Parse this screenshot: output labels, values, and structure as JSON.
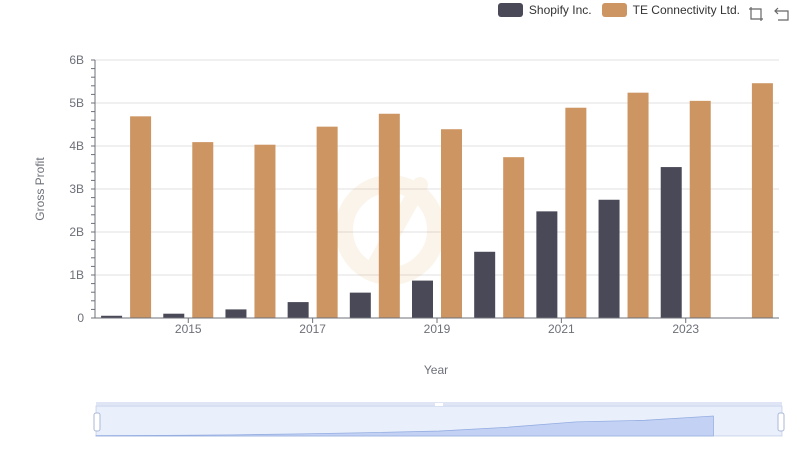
{
  "chart_data": {
    "type": "bar",
    "xlabel": "Year",
    "ylabel": "Gross Profit",
    "ylim": [
      0,
      6000000000
    ],
    "yticks": [
      "0",
      "1B",
      "2B",
      "3B",
      "4B",
      "5B",
      "6B"
    ],
    "x": [
      2014,
      2015,
      2016,
      2017,
      2018,
      2019,
      2020,
      2021,
      2022,
      2023,
      2024
    ],
    "xtick_labels": [
      "2015",
      "2017",
      "2019",
      "2021",
      "2023"
    ],
    "grid": true,
    "legend_position": "top-right",
    "series": [
      {
        "name": "Shopify Inc.",
        "color": "#4a4958",
        "values": [
          52000000,
          100000000,
          200000000,
          370000000,
          590000000,
          870000000,
          1540000000,
          2480000000,
          2750000000,
          3510000000,
          null
        ]
      },
      {
        "name": "TE Connectivity Ltd.",
        "color": "#cc9562",
        "values": [
          4690000000,
          4090000000,
          4030000000,
          4450000000,
          4750000000,
          4390000000,
          3740000000,
          4890000000,
          5240000000,
          5050000000,
          5460000000
        ]
      }
    ]
  },
  "toolbox": {
    "icons": [
      "zoom-icon",
      "restore-icon"
    ]
  },
  "datazoom": {
    "start_percent": 0,
    "end_percent": 100
  }
}
